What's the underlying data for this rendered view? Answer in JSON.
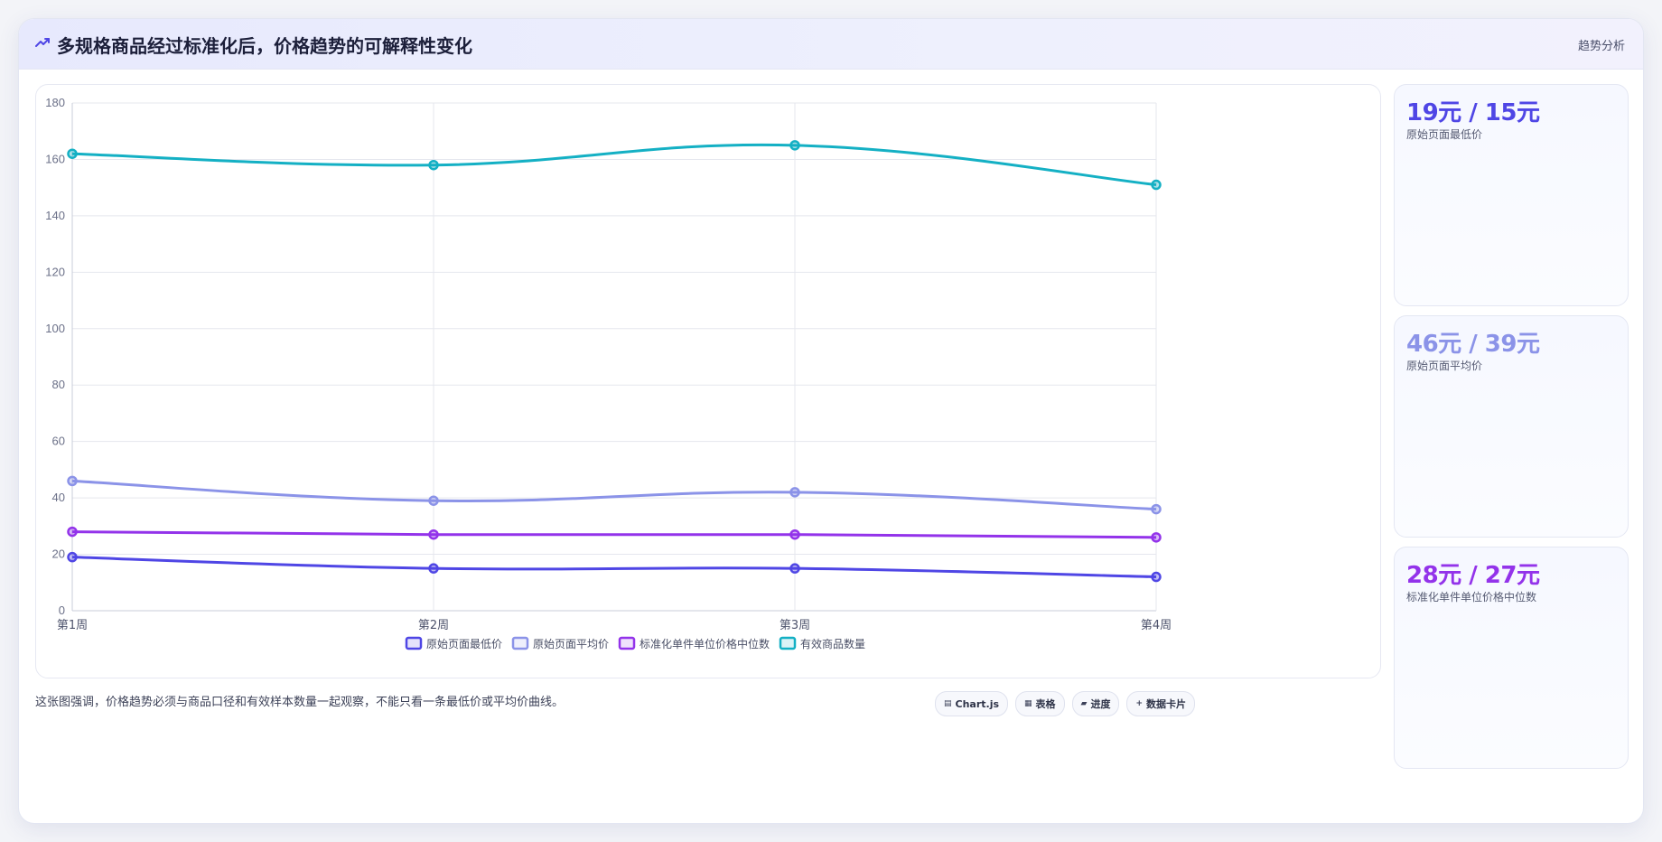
{
  "header": {
    "title": "多规格商品经过标准化后，价格趋势的可解释性变化",
    "tag": "趋势分析"
  },
  "colors": {
    "accent": "#4f46e5",
    "series": [
      "#4f46e5",
      "#8b93e8",
      "#9333ea",
      "#14b0c4"
    ]
  },
  "chart_data": {
    "type": "line",
    "title": "",
    "xlabel": "",
    "ylabel": "",
    "categories": [
      "第1周",
      "第2周",
      "第3周",
      "第4周"
    ],
    "ylim": [
      0,
      180
    ],
    "yticks": [
      0,
      20,
      40,
      60,
      80,
      100,
      120,
      140,
      160,
      180
    ],
    "grid": true,
    "legend_position": "bottom",
    "series": [
      {
        "name": "原始页面最低价",
        "values": [
          19,
          15,
          15,
          12
        ],
        "color": "#4f46e5"
      },
      {
        "name": "原始页面平均价",
        "values": [
          46,
          39,
          42,
          36
        ],
        "color": "#8b93e8"
      },
      {
        "name": "标准化单件单位价格中位数",
        "values": [
          28,
          27,
          27,
          26
        ],
        "color": "#9333ea"
      },
      {
        "name": "有效商品数量",
        "values": [
          162,
          158,
          165,
          151
        ],
        "color": "#14b0c4"
      }
    ]
  },
  "stats": [
    {
      "value": "19元 / 15元",
      "label": "原始页面最低价",
      "color": "#4f46e5"
    },
    {
      "value": "46元 / 39元",
      "label": "原始页面平均价",
      "color": "#8b93e8"
    },
    {
      "value": "28元 / 27元",
      "label": "标准化单件单位价格中位数",
      "color": "#9333ea"
    }
  ],
  "footer": {
    "note": "这张图强调，价格趋势必须与商品口径和有效样本数量一起观察，不能只看一条最低价或平均价曲线。",
    "chips": [
      {
        "icon": "chart-icon",
        "glyph": "▤",
        "label": "Chart.js"
      },
      {
        "icon": "table-icon",
        "glyph": "▦",
        "label": "表格"
      },
      {
        "icon": "progress-icon",
        "glyph": "▰",
        "label": "进度"
      },
      {
        "icon": "card-icon",
        "glyph": "+",
        "label": "数据卡片"
      }
    ]
  }
}
